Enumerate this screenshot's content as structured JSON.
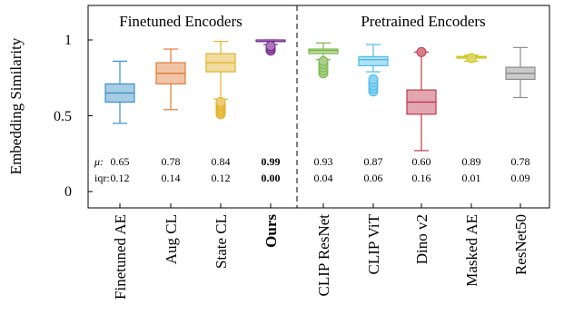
{
  "chart_data": {
    "type": "box",
    "ylabel": "Embedding Similarity",
    "ylim": [
      -0.1,
      1.2
    ],
    "yticks": [
      0,
      0.5,
      1
    ],
    "ytick_labels": [
      "0",
      "0.5",
      "1"
    ],
    "groups": [
      {
        "label": "Finetuned Encoders",
        "members": [
          0,
          1,
          2,
          3
        ]
      },
      {
        "label": "Pretrained Encoders",
        "members": [
          4,
          5,
          6,
          7,
          8
        ]
      }
    ],
    "stats_labels": {
      "mu": "μ:",
      "iqr": "iqr:"
    },
    "boxes": [
      {
        "name": "Finetuned AE",
        "color": "#3b8fc4",
        "whislo": 0.45,
        "q1": 0.59,
        "med": 0.65,
        "q3": 0.71,
        "whishi": 0.86,
        "fliers": [],
        "mu": "0.65",
        "iqr": "0.12",
        "bold": false
      },
      {
        "name": "Aug CL",
        "color": "#e07b39",
        "whislo": 0.54,
        "q1": 0.71,
        "med": 0.78,
        "q3": 0.85,
        "whishi": 0.94,
        "fliers": [],
        "mu": "0.78",
        "iqr": "0.14",
        "bold": false
      },
      {
        "name": "State CL",
        "color": "#e3b22c",
        "whislo": 0.61,
        "q1": 0.79,
        "med": 0.85,
        "q3": 0.91,
        "whishi": 0.99,
        "fliers": [
          0.51,
          0.52,
          0.53,
          0.54,
          0.55,
          0.56,
          0.57,
          0.58,
          0.59
        ],
        "mu": "0.84",
        "iqr": "0.12",
        "bold": false
      },
      {
        "name": "Ours",
        "color": "#7b2d8e",
        "whislo": 0.97,
        "q1": 0.99,
        "med": 0.99,
        "q3": 1.0,
        "whishi": 1.0,
        "fliers": [
          0.93,
          0.94,
          0.95,
          0.96
        ],
        "mu": "0.99",
        "iqr": "0.00",
        "bold": true
      },
      {
        "name": "CLIP ResNet",
        "color": "#7ab648",
        "whislo": 0.87,
        "q1": 0.91,
        "med": 0.93,
        "q3": 0.94,
        "whishi": 0.98,
        "fliers": [
          0.78,
          0.8,
          0.82,
          0.84,
          0.86
        ],
        "mu": "0.93",
        "iqr": "0.04",
        "bold": false
      },
      {
        "name": "CLIP ViT",
        "color": "#4dbbe8",
        "whislo": 0.79,
        "q1": 0.83,
        "med": 0.87,
        "q3": 0.89,
        "whishi": 0.97,
        "fliers": [
          0.66,
          0.68,
          0.7,
          0.72,
          0.74
        ],
        "mu": "0.87",
        "iqr": "0.06",
        "bold": false
      },
      {
        "name": "Dino v2",
        "color": "#c0394e",
        "whislo": 0.27,
        "q1": 0.51,
        "med": 0.59,
        "q3": 0.67,
        "whishi": 0.92,
        "fliers": [
          0.92
        ],
        "mu": "0.60",
        "iqr": "0.16",
        "bold": false
      },
      {
        "name": "Masked AE",
        "color": "#c9c417",
        "whislo": 0.86,
        "q1": 0.88,
        "med": 0.89,
        "q3": 0.89,
        "whishi": 0.9,
        "fliers": [
          0.88
        ],
        "mu": "0.89",
        "iqr": "0.01",
        "bold": false
      },
      {
        "name": "ResNet50",
        "color": "#8c8c8c",
        "whislo": 0.62,
        "q1": 0.74,
        "med": 0.78,
        "q3": 0.82,
        "whishi": 0.95,
        "fliers": [],
        "mu": "0.78",
        "iqr": "0.09",
        "bold": false
      }
    ]
  }
}
